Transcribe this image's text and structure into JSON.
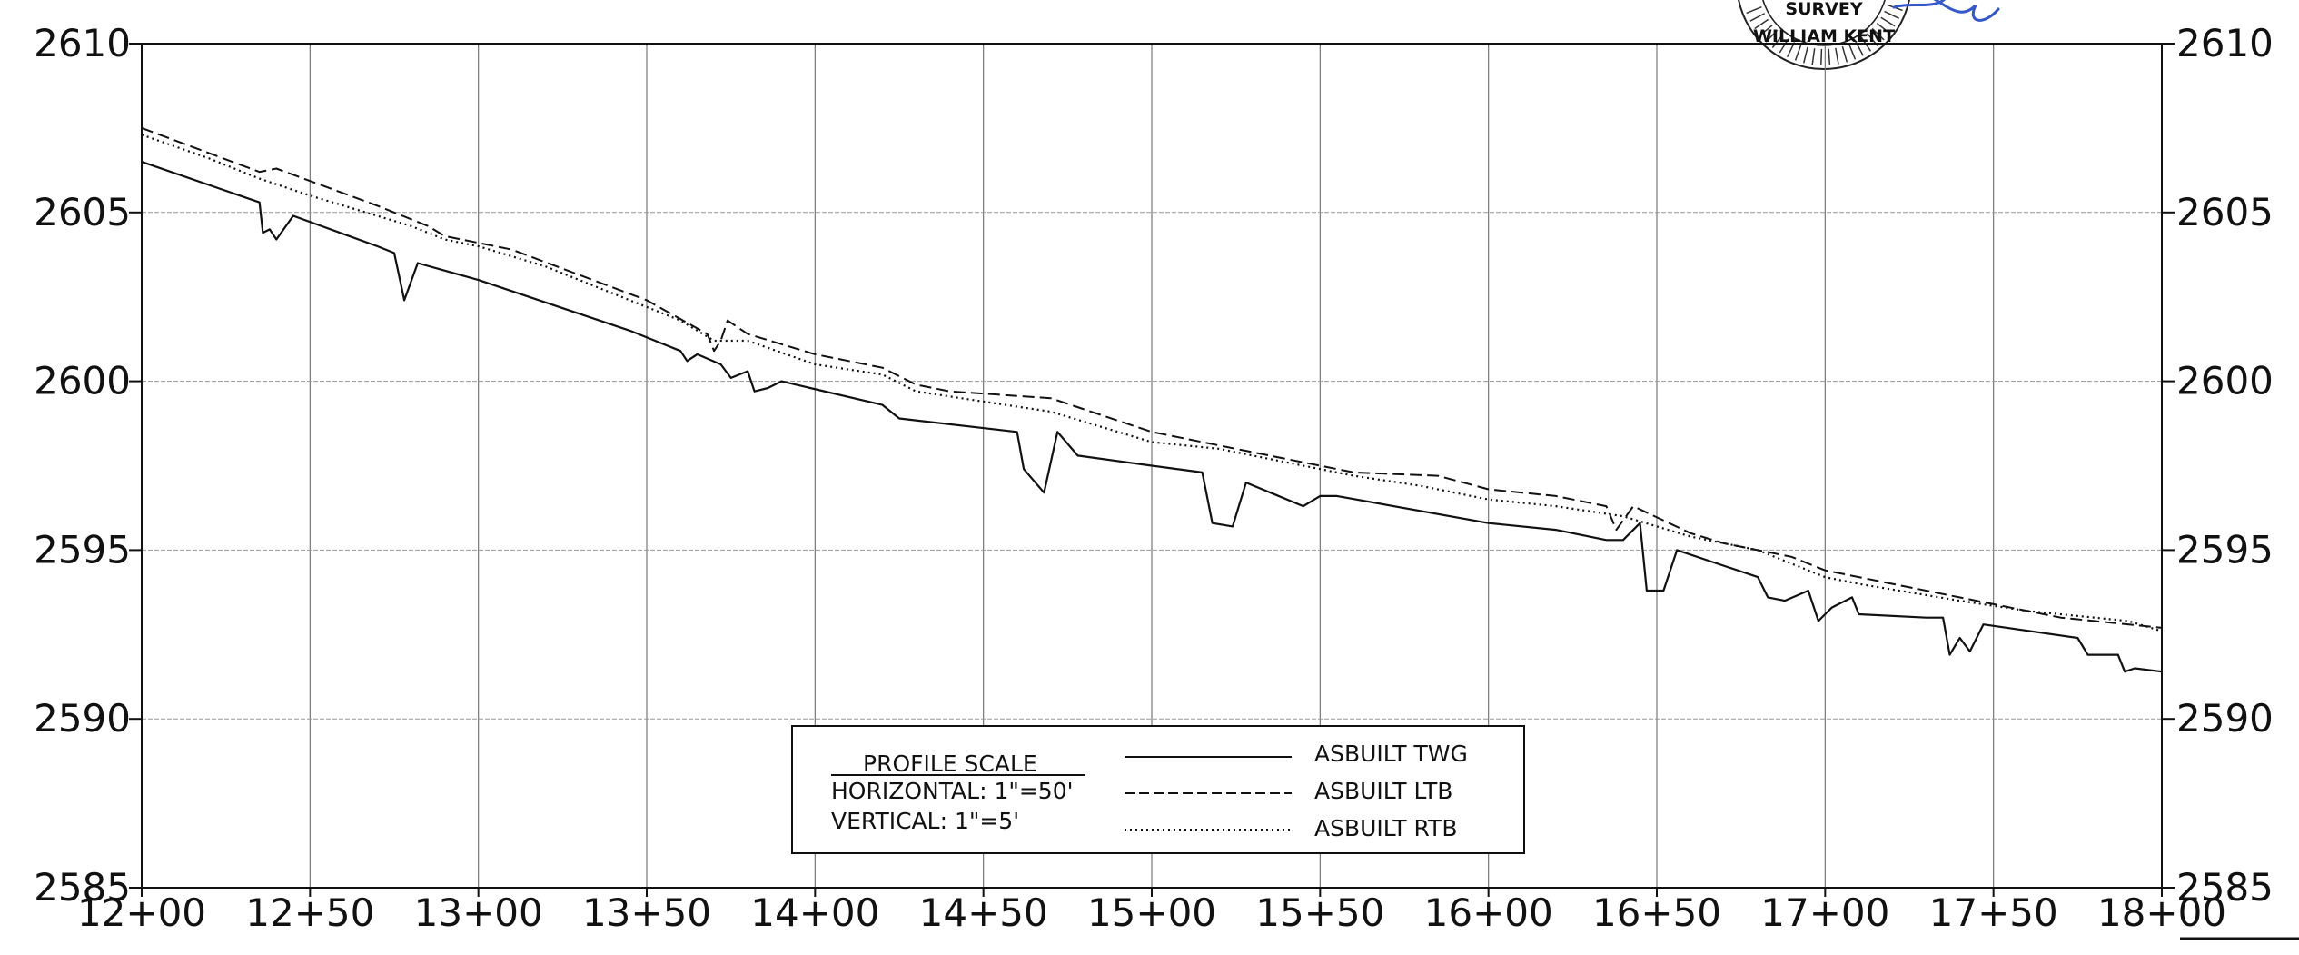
{
  "chart_data": {
    "type": "line",
    "x_tick_labels": [
      "12+00",
      "12+50",
      "13+00",
      "13+50",
      "14+00",
      "14+50",
      "15+00",
      "15+50",
      "16+00",
      "16+50",
      "17+00",
      "17+50",
      "18+00"
    ],
    "x_ticks": [
      1200,
      1250,
      1300,
      1350,
      1400,
      1450,
      1500,
      1550,
      1600,
      1650,
      1700,
      1750,
      1800
    ],
    "xlim": [
      1200,
      1800
    ],
    "ylim": [
      2585,
      2610
    ],
    "y_ticks": [
      2585,
      2590,
      2595,
      2600,
      2605,
      2610
    ],
    "y_tick_labels": [
      "2585",
      "2590",
      "2595",
      "2600",
      "2605",
      "2610"
    ],
    "grid": true,
    "series": [
      {
        "name": "ASBUILT TWG",
        "style": "solid",
        "points": [
          [
            1200,
            2606.5
          ],
          [
            1235,
            2605.3
          ],
          [
            1236,
            2604.4
          ],
          [
            1238,
            2604.5
          ],
          [
            1240,
            2604.2
          ],
          [
            1245,
            2604.9
          ],
          [
            1270,
            2604.0
          ],
          [
            1275,
            2603.8
          ],
          [
            1278,
            2602.4
          ],
          [
            1282,
            2603.5
          ],
          [
            1300,
            2603.0
          ],
          [
            1330,
            2602.0
          ],
          [
            1345,
            2601.5
          ],
          [
            1360,
            2600.9
          ],
          [
            1362,
            2600.6
          ],
          [
            1365,
            2600.8
          ],
          [
            1372,
            2600.5
          ],
          [
            1375,
            2600.1
          ],
          [
            1380,
            2600.3
          ],
          [
            1382,
            2599.7
          ],
          [
            1386,
            2599.8
          ],
          [
            1390,
            2600.0
          ],
          [
            1420,
            2599.3
          ],
          [
            1425,
            2598.9
          ],
          [
            1460,
            2598.5
          ],
          [
            1462,
            2597.4
          ],
          [
            1468,
            2596.7
          ],
          [
            1472,
            2598.5
          ],
          [
            1478,
            2597.8
          ],
          [
            1500,
            2597.5
          ],
          [
            1515,
            2597.3
          ],
          [
            1518,
            2595.8
          ],
          [
            1524,
            2595.7
          ],
          [
            1528,
            2597.0
          ],
          [
            1545,
            2596.3
          ],
          [
            1550,
            2596.6
          ],
          [
            1555,
            2596.6
          ],
          [
            1600,
            2595.8
          ],
          [
            1620,
            2595.6
          ],
          [
            1635,
            2595.3
          ],
          [
            1640,
            2595.3
          ],
          [
            1645,
            2595.8
          ],
          [
            1647,
            2593.8
          ],
          [
            1652,
            2593.8
          ],
          [
            1656,
            2595.0
          ],
          [
            1680,
            2594.2
          ],
          [
            1683,
            2593.6
          ],
          [
            1688,
            2593.5
          ],
          [
            1695,
            2593.8
          ],
          [
            1698,
            2592.9
          ],
          [
            1702,
            2593.3
          ],
          [
            1708,
            2593.6
          ],
          [
            1710,
            2593.1
          ],
          [
            1730,
            2593.0
          ],
          [
            1735,
            2593.0
          ],
          [
            1737,
            2591.9
          ],
          [
            1740,
            2592.4
          ],
          [
            1743,
            2592.0
          ],
          [
            1747,
            2592.8
          ],
          [
            1775,
            2592.4
          ],
          [
            1778,
            2591.9
          ],
          [
            1787,
            2591.9
          ],
          [
            1789,
            2591.4
          ],
          [
            1792,
            2591.5
          ],
          [
            1800,
            2591.4
          ]
        ]
      },
      {
        "name": "ASBUILT LTB",
        "style": "dashed",
        "points": [
          [
            1200,
            2607.5
          ],
          [
            1235,
            2606.2
          ],
          [
            1240,
            2606.3
          ],
          [
            1270,
            2605.2
          ],
          [
            1285,
            2604.6
          ],
          [
            1290,
            2604.3
          ],
          [
            1310,
            2603.9
          ],
          [
            1350,
            2602.4
          ],
          [
            1368,
            2601.4
          ],
          [
            1370,
            2600.9
          ],
          [
            1372,
            2601.2
          ],
          [
            1374,
            2601.8
          ],
          [
            1380,
            2601.4
          ],
          [
            1400,
            2600.8
          ],
          [
            1420,
            2600.4
          ],
          [
            1430,
            2599.9
          ],
          [
            1440,
            2599.7
          ],
          [
            1470,
            2599.5
          ],
          [
            1500,
            2598.5
          ],
          [
            1520,
            2598.1
          ],
          [
            1545,
            2597.6
          ],
          [
            1560,
            2597.3
          ],
          [
            1585,
            2597.2
          ],
          [
            1600,
            2596.8
          ],
          [
            1620,
            2596.6
          ],
          [
            1635,
            2596.3
          ],
          [
            1638,
            2595.6
          ],
          [
            1643,
            2596.3
          ],
          [
            1660,
            2595.5
          ],
          [
            1670,
            2595.2
          ],
          [
            1690,
            2594.8
          ],
          [
            1700,
            2594.4
          ],
          [
            1710,
            2594.2
          ],
          [
            1720,
            2594.0
          ],
          [
            1750,
            2593.4
          ],
          [
            1770,
            2593.0
          ],
          [
            1800,
            2592.7
          ]
        ]
      },
      {
        "name": "ASBUILT RTB",
        "style": "dotted",
        "points": [
          [
            1200,
            2607.3
          ],
          [
            1220,
            2606.6
          ],
          [
            1235,
            2606.0
          ],
          [
            1250,
            2605.5
          ],
          [
            1280,
            2604.6
          ],
          [
            1290,
            2604.2
          ],
          [
            1300,
            2604.0
          ],
          [
            1320,
            2603.4
          ],
          [
            1340,
            2602.6
          ],
          [
            1360,
            2601.8
          ],
          [
            1370,
            2601.2
          ],
          [
            1380,
            2601.2
          ],
          [
            1400,
            2600.5
          ],
          [
            1420,
            2600.2
          ],
          [
            1430,
            2599.7
          ],
          [
            1450,
            2599.4
          ],
          [
            1470,
            2599.1
          ],
          [
            1490,
            2598.5
          ],
          [
            1500,
            2598.2
          ],
          [
            1520,
            2598.0
          ],
          [
            1540,
            2597.6
          ],
          [
            1560,
            2597.2
          ],
          [
            1580,
            2596.9
          ],
          [
            1600,
            2596.5
          ],
          [
            1620,
            2596.3
          ],
          [
            1640,
            2596.0
          ],
          [
            1660,
            2595.4
          ],
          [
            1680,
            2595.0
          ],
          [
            1700,
            2594.2
          ],
          [
            1710,
            2594.0
          ],
          [
            1740,
            2593.5
          ],
          [
            1760,
            2593.2
          ],
          [
            1780,
            2593.0
          ],
          [
            1790,
            2592.9
          ],
          [
            1800,
            2592.6
          ]
        ]
      }
    ]
  },
  "legend": {
    "scale_title": "PROFILE SCALE",
    "horizontal": "HORIZONTAL: 1\"=50'",
    "vertical": "VERTICAL: 1\"=5'",
    "entries": [
      "ASBUILT TWG",
      "ASBUILT LTB",
      "ASBUILT RTB"
    ]
  },
  "seal": {
    "line1": "SURVEY",
    "line2": "WILLIAM KENT"
  }
}
